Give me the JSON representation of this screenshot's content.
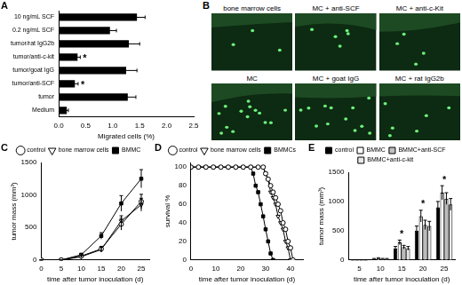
{
  "chart_data": [
    {
      "panel": "A",
      "type": "bar",
      "orientation": "horizontal",
      "categories": [
        "10 ng/mL SCF",
        "0.2 ng/mL SCF",
        "tumor/rat IgG2b",
        "tumor/anti-c-kit",
        "tumor/goat IgG",
        "tumor/anti-SCF",
        "tumor",
        "Medium"
      ],
      "values": [
        1.45,
        0.95,
        1.3,
        0.35,
        1.25,
        0.3,
        1.28,
        0.15
      ],
      "errors": [
        0.15,
        0.12,
        0.2,
        0.05,
        0.2,
        0.06,
        0.15,
        0.03
      ],
      "color": "#000000",
      "xlabel": "Migrated cells (%)",
      "xlim": [
        0,
        2.5
      ],
      "xticks": [
        {
          "value": 0,
          "label": "0.0"
        },
        {
          "value": 0.5,
          "label": "0.5"
        },
        {
          "value": 1,
          "label": "1.0"
        },
        {
          "value": 1.5,
          "label": "1.5"
        },
        {
          "value": 2,
          "label": "2.0"
        },
        {
          "value": 2.5,
          "label": "2.5"
        }
      ],
      "annotations": [
        {
          "category": "tumor/anti-c-kit",
          "text": "*"
        },
        {
          "category": "tumor/anti-SCF",
          "text": "*"
        }
      ],
      "grid": false
    },
    {
      "panel": "C",
      "type": "line",
      "x": [
        0,
        5,
        10,
        15,
        20,
        25
      ],
      "series": [
        {
          "name": "control",
          "color": "#000000",
          "marker": "circle_open",
          "values": [
            0,
            0,
            60,
            170,
            550,
            900
          ],
          "errors": [
            0,
            0,
            15,
            40,
            90,
            110
          ]
        },
        {
          "name": "bone marrow cells",
          "color": "#000000",
          "marker": "triangle_down_open",
          "values": [
            0,
            0,
            50,
            160,
            600,
            850
          ],
          "errors": [
            0,
            0,
            12,
            35,
            80,
            100
          ]
        },
        {
          "name": "BMMC",
          "color": "#000000",
          "marker": "square",
          "values": [
            0,
            0,
            80,
            370,
            870,
            1250
          ],
          "errors": [
            0,
            0,
            20,
            50,
            120,
            140
          ]
        }
      ],
      "xlabel": "time after tumor inoculation (d)",
      "ylabel": "tumor mass (mm³)",
      "xlim": [
        0,
        27
      ],
      "xticks": [
        0,
        5,
        10,
        15,
        20,
        25
      ],
      "ylim": [
        0,
        1500
      ],
      "yticks": [
        0,
        500,
        1000,
        1500
      ],
      "legend": "top",
      "grid": false
    },
    {
      "panel": "D",
      "type": "line",
      "series": [
        {
          "name": "control",
          "color": "#000000",
          "marker": "circle_open",
          "x": [
            0,
            3,
            6,
            9,
            12,
            15,
            18,
            21,
            24,
            27,
            29,
            30,
            31,
            32,
            33,
            34,
            35,
            36,
            37,
            38,
            39,
            40,
            41
          ],
          "values": [
            100,
            100,
            100,
            100,
            100,
            100,
            100,
            100,
            100,
            100,
            100,
            93,
            87,
            80,
            73,
            67,
            60,
            53,
            40,
            33,
            20,
            13,
            0
          ]
        },
        {
          "name": "bone marrow cells",
          "color": "#000000",
          "marker": "triangle_down_open",
          "x": [
            0,
            3,
            6,
            9,
            12,
            15,
            18,
            21,
            24,
            27,
            29,
            30,
            31,
            32,
            33,
            34,
            35,
            36,
            37,
            38,
            39,
            40
          ],
          "values": [
            100,
            100,
            100,
            100,
            100,
            100,
            100,
            100,
            100,
            100,
            100,
            93,
            87,
            73,
            67,
            60,
            47,
            40,
            33,
            20,
            13,
            0
          ]
        },
        {
          "name": "BMMCs",
          "color": "#000000",
          "marker": "square",
          "x": [
            0,
            3,
            6,
            9,
            12,
            15,
            18,
            21,
            24,
            25,
            26,
            27,
            28,
            29,
            30,
            31,
            32,
            33
          ],
          "values": [
            100,
            100,
            100,
            100,
            100,
            100,
            100,
            100,
            100,
            93,
            80,
            73,
            60,
            47,
            33,
            20,
            7,
            0
          ]
        }
      ],
      "xlabel": "time after tumor inoculation (d)",
      "ylabel": "survival %",
      "xlim": [
        0,
        45
      ],
      "xticks": [
        0,
        10,
        20,
        30,
        40
      ],
      "ylim": [
        0,
        105
      ],
      "yticks": [
        0,
        20,
        40,
        60,
        80,
        100
      ],
      "legend": "top",
      "grid": false
    },
    {
      "panel": "E",
      "type": "bar",
      "categories": [
        5,
        10,
        15,
        20,
        25
      ],
      "series": [
        {
          "name": "control",
          "color": "#000000",
          "values": [
            0,
            20,
            200,
            500,
            900
          ],
          "errors": [
            0,
            5,
            30,
            80,
            100
          ]
        },
        {
          "name": "BMMC",
          "color": "#ffffff",
          "values": [
            0,
            30,
            300,
            750,
            1150
          ],
          "errors": [
            0,
            8,
            40,
            100,
            120
          ]
        },
        {
          "name": "BMMC+anti-SCF",
          "color": "#c0c0c0",
          "values": [
            0,
            20,
            220,
            600,
            1050
          ],
          "errors": [
            0,
            6,
            30,
            80,
            100
          ]
        },
        {
          "name": "BMMC+anti-c-kit",
          "color": "#e8e8e8",
          "values": [
            0,
            20,
            200,
            580,
            950
          ],
          "errors": [
            0,
            5,
            30,
            80,
            100
          ]
        }
      ],
      "xlabel": "time after tumor inoculation (d)",
      "ylabel": "tumor mass (mm³)",
      "ylim": [
        0,
        1500
      ],
      "yticks": [
        0,
        500,
        1000,
        1500
      ],
      "annotations": [
        {
          "category": 15,
          "text": "*"
        },
        {
          "category": 20,
          "text": "*"
        },
        {
          "category": 25,
          "text": "*"
        }
      ],
      "legend": "top",
      "grid": false
    }
  ],
  "image_panel": {
    "panel": "B",
    "labels": [
      "bone marrow cells",
      "MC + anti-SCF",
      "MC + anti-c-Kit",
      "MC",
      "MC + goat IgG",
      "MC + rat IgG2b"
    ]
  }
}
